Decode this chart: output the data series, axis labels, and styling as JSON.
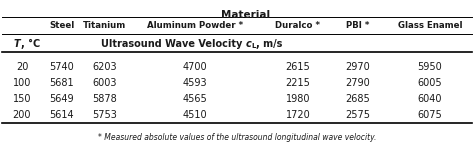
{
  "title": "Material",
  "col_headers": [
    "Steel",
    "Titanium",
    "Aluminum Powder *",
    "Duralco *",
    "PBI *",
    "Glass Enamel"
  ],
  "subheader_left": "T, °C",
  "subheader_right": "Ultrasound Wave Velocity cₗ, m/s",
  "rows": [
    [
      "20",
      "5740",
      "6203",
      "4700",
      "2615",
      "2970",
      "5950"
    ],
    [
      "100",
      "5681",
      "6003",
      "4593",
      "2215",
      "2790",
      "6005"
    ],
    [
      "150",
      "5649",
      "5878",
      "4565",
      "1980",
      "2685",
      "6040"
    ],
    [
      "200",
      "5614",
      "5753",
      "4510",
      "1720",
      "2575",
      "6075"
    ]
  ],
  "footnote": "* Measured absolute values of the ultrasound longitudinal wave velocity.",
  "background_color": "#ffffff",
  "text_color": "#1a1a1a",
  "figsize": [
    4.74,
    1.44
  ],
  "dpi": 100
}
